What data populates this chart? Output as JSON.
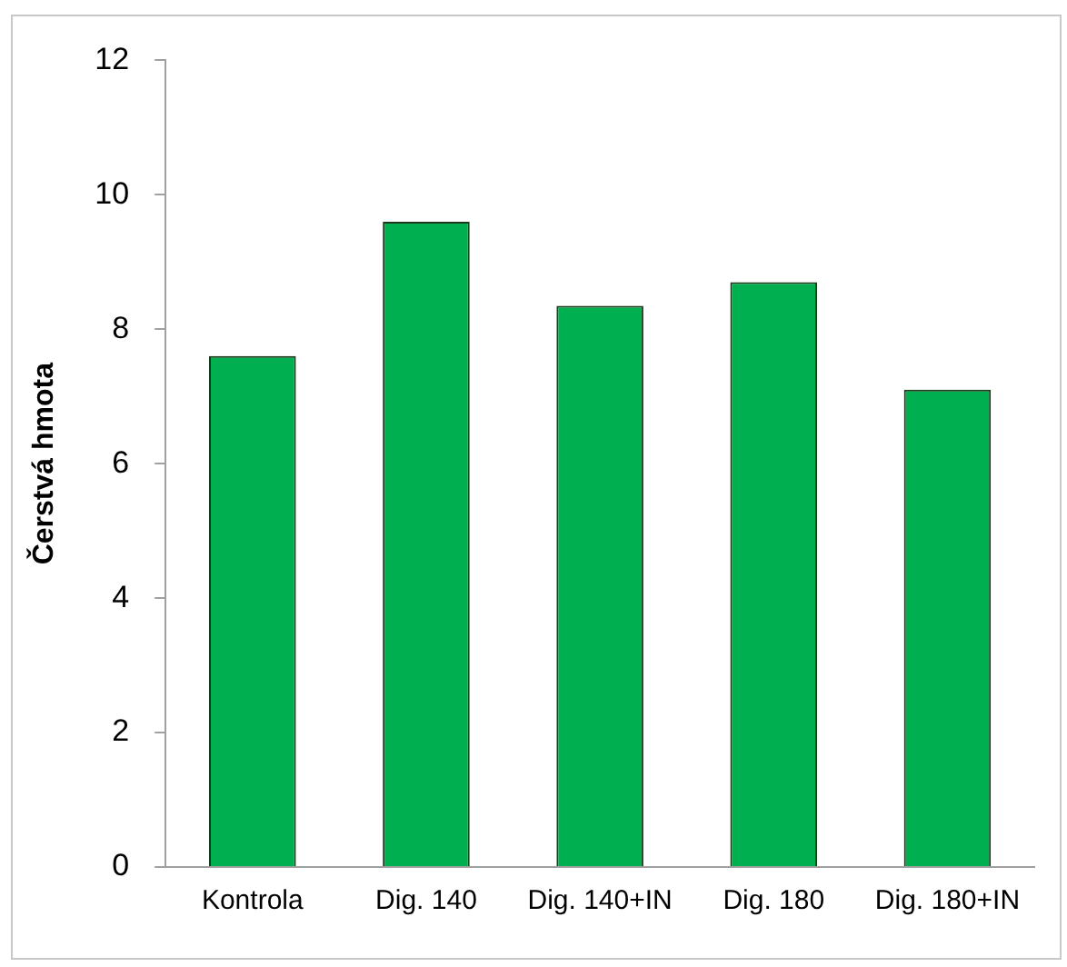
{
  "chart_data": {
    "type": "bar",
    "ylabel": "Čerstvá hmota",
    "categories": [
      "Kontrola",
      "Dig. 140",
      "Dig. 140+IN",
      "Dig. 180",
      "Dig. 180+IN"
    ],
    "values": [
      7.6,
      9.6,
      8.35,
      8.7,
      7.1
    ],
    "color": "#00b050",
    "ylim": [
      0,
      12
    ],
    "yticks": [
      0,
      2,
      4,
      6,
      8,
      10,
      12
    ],
    "grid": false,
    "legend": false
  }
}
